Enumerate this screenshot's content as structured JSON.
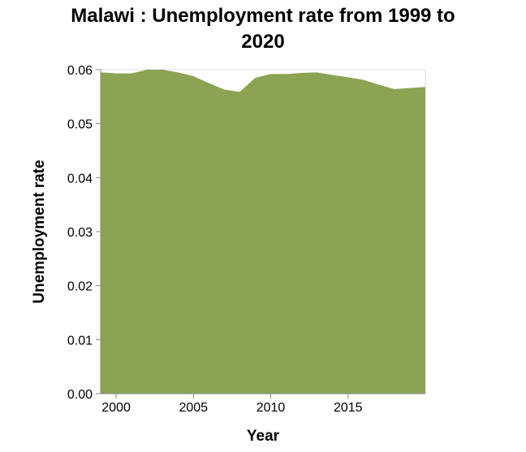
{
  "chart_data": {
    "type": "area",
    "title_lines": [
      "Malawi : Unemployment rate from 1999 to",
      "2020"
    ],
    "xlabel": "Year",
    "ylabel": "Unemployment rate",
    "x": [
      1999,
      2000,
      2001,
      2002,
      2003,
      2004,
      2005,
      2006,
      2007,
      2008,
      2009,
      2010,
      2011,
      2012,
      2013,
      2014,
      2015,
      2016,
      2017,
      2018,
      2019,
      2020
    ],
    "series": [
      {
        "values": [
          0.0595,
          0.0593,
          0.0593,
          0.06,
          0.06,
          0.0595,
          0.0588,
          0.0575,
          0.0563,
          0.0559,
          0.0585,
          0.0592,
          0.0592,
          0.0594,
          0.0595,
          0.059,
          0.0586,
          0.0581,
          0.0572,
          0.0564,
          0.0566,
          0.0568
        ],
        "color": "#8ba352"
      }
    ],
    "xlim": [
      1999,
      2020
    ],
    "ylim": [
      0,
      0.06
    ],
    "x_ticks": [
      2000,
      2005,
      2010,
      2015
    ],
    "x_tick_labels": [
      "2000",
      "2005",
      "2010",
      "2015"
    ],
    "y_ticks": [
      0,
      0.01,
      0.02,
      0.03,
      0.04,
      0.05,
      0.06
    ],
    "y_tick_labels": [
      "0.00",
      "0.01",
      "0.02",
      "0.03",
      "0.04",
      "0.05",
      "0.06"
    ],
    "grid": false,
    "legend": "none"
  }
}
